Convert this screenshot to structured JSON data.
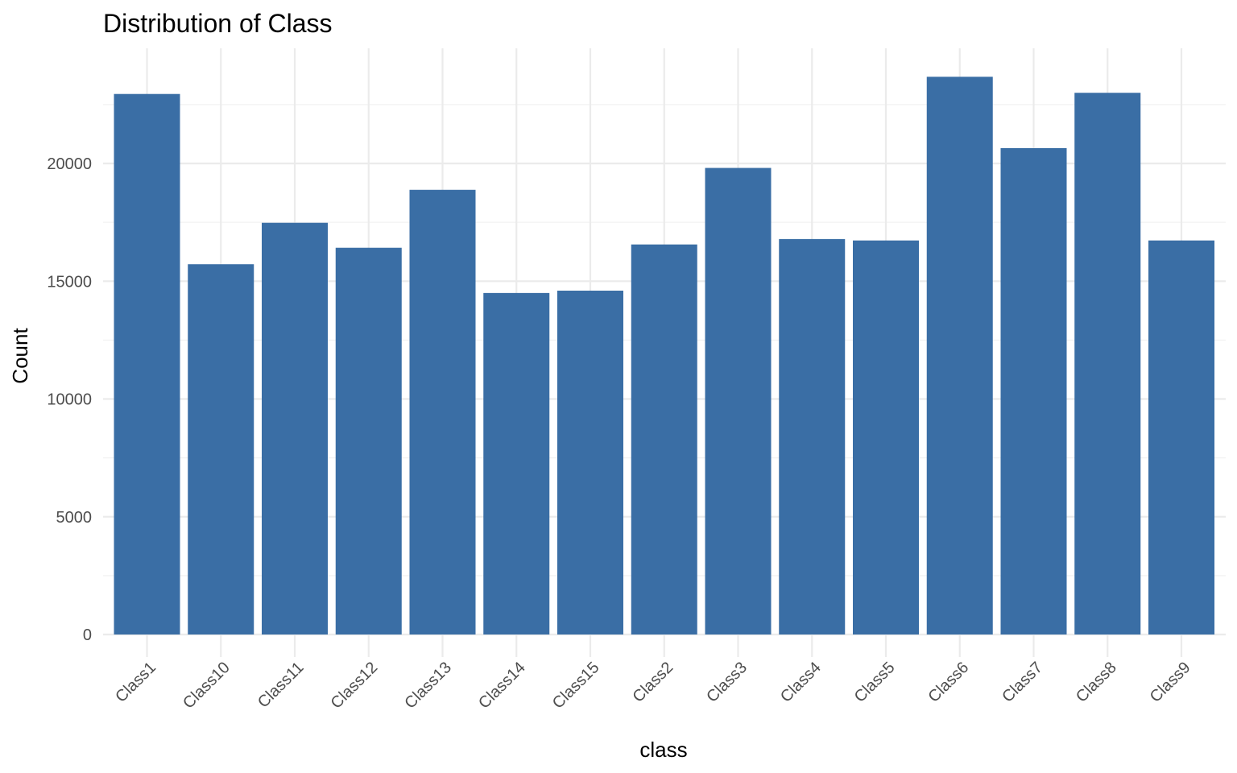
{
  "chart_data": {
    "type": "bar",
    "title": "Distribution of Class",
    "xlabel": "class",
    "ylabel": "Count",
    "categories": [
      "Class1",
      "Class10",
      "Class11",
      "Class12",
      "Class13",
      "Class14",
      "Class15",
      "Class2",
      "Class3",
      "Class4",
      "Class5",
      "Class6",
      "Class7",
      "Class8",
      "Class9"
    ],
    "values": [
      22950,
      15720,
      17480,
      16420,
      18880,
      14500,
      14600,
      16560,
      19810,
      16790,
      16730,
      23680,
      20650,
      23000,
      16730
    ],
    "ylim": [
      0,
      25000
    ],
    "yticks": [
      0,
      5000,
      10000,
      15000,
      20000
    ],
    "ytick_labels": [
      "0",
      "5000",
      "10000",
      "15000",
      "20000"
    ],
    "bar_color": "#3a6ea5",
    "grid": true,
    "legend": "none"
  }
}
